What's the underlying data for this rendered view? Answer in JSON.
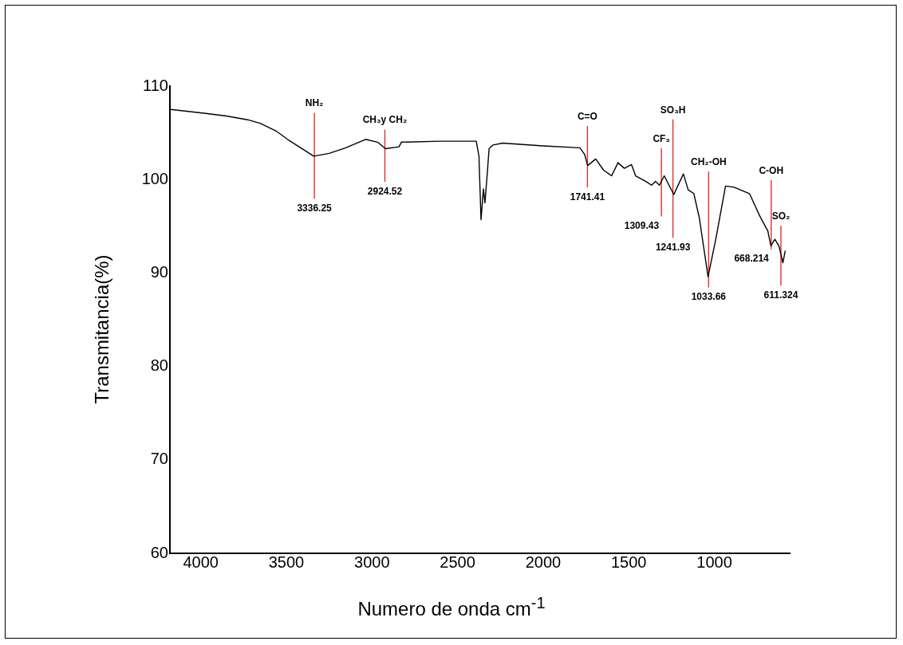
{
  "chart_data": {
    "type": "line",
    "xlabel": "Numero de onda cm$^{-1}$",
    "ylabel": "Transmitancia(%)",
    "xlim": [
      4180,
      560
    ],
    "xticks": [
      4000,
      3500,
      3000,
      2500,
      2000,
      1500,
      1000
    ],
    "ylim": [
      60,
      110
    ],
    "yticks": [
      60,
      70,
      80,
      90,
      100,
      110
    ],
    "grid": false,
    "legend": false,
    "series": [
      {
        "color": "#000000",
        "x": [
          4177,
          3980,
          3850,
          3726,
          3650,
          3560,
          3493,
          3400,
          3340,
          3250,
          3153,
          3037,
          2967,
          2921,
          2842,
          2828,
          2600,
          2391,
          2375,
          2363,
          2349,
          2340,
          2325,
          2316,
          2293,
          2237,
          2000,
          1786,
          1758,
          1740,
          1693,
          1647,
          1600,
          1563,
          1526,
          1484,
          1460,
          1400,
          1367,
          1344,
          1321,
          1293,
          1237,
          1181,
          1153,
          1120,
          1088,
          1037,
          991,
          935,
          888,
          795,
          735,
          688,
          670,
          647,
          623,
          600,
          586
        ],
        "values": [
          107.5,
          107.1,
          106.8,
          106.4,
          106.0,
          105.2,
          104.3,
          103.2,
          102.5,
          102.8,
          103.4,
          104.3,
          104.0,
          103.3,
          103.5,
          104.0,
          104.1,
          104.1,
          102.5,
          95.7,
          99.0,
          97.5,
          101.0,
          103.3,
          103.7,
          103.9,
          103.6,
          103.4,
          102.7,
          101.5,
          102.2,
          101.0,
          100.4,
          101.8,
          101.2,
          101.6,
          100.4,
          99.8,
          99.4,
          99.8,
          99.4,
          100.4,
          98.4,
          100.6,
          98.9,
          98.5,
          95.9,
          89.6,
          93.7,
          99.3,
          99.2,
          98.5,
          96.1,
          94.5,
          92.9,
          93.6,
          92.9,
          91.1,
          92.4
        ]
      },
      {
        "color": "#e03030",
        "x": [
          3336.25,
          3336.25
        ],
        "values": [
          107.1,
          98.0
        ]
      },
      {
        "color": "#e03030",
        "x": [
          2924.52,
          2924.52
        ],
        "values": [
          105.3,
          99.8
        ]
      },
      {
        "color": "#e03030",
        "x": [
          1741.41,
          1741.41
        ],
        "values": [
          105.7,
          99.2
        ]
      },
      {
        "color": "#e03030",
        "x": [
          1309.43,
          1309.43
        ],
        "values": [
          103.3,
          96.1
        ]
      },
      {
        "color": "#e03030",
        "x": [
          1241.93,
          1241.93
        ],
        "values": [
          106.4,
          93.8
        ]
      },
      {
        "color": "#e03030",
        "x": [
          1033.66,
          1033.66
        ],
        "values": [
          100.8,
          88.5
        ]
      },
      {
        "color": "#e03030",
        "x": [
          668.214,
          668.214
        ],
        "values": [
          99.9,
          92.6
        ]
      },
      {
        "color": "#e03030",
        "x": [
          611.324,
          611.324
        ],
        "values": [
          95.0,
          88.7
        ]
      }
    ],
    "annotations": [
      {
        "text": "NH₂",
        "x": 3336.25,
        "y": 107.1
      },
      {
        "text": "3336.25",
        "x": 3336.25,
        "y": 98.0
      },
      {
        "text": "CH₃y CH₂",
        "x": 2924.52,
        "y": 105.3
      },
      {
        "text": "2924.52",
        "x": 2924.52,
        "y": 99.8
      },
      {
        "text": "C=O",
        "x": 1741.41,
        "y": 105.7
      },
      {
        "text": "1741.41",
        "x": 1741.41,
        "y": 99.2
      },
      {
        "text": "CF₃",
        "x": 1309.43,
        "y": 103.3
      },
      {
        "text": "1309.43",
        "x": 1309.43,
        "y": 96.1
      },
      {
        "text": "SO₃H",
        "x": 1241.93,
        "y": 106.4
      },
      {
        "text": "1241.93",
        "x": 1241.93,
        "y": 93.8
      },
      {
        "text": "CH₂-OH",
        "x": 1033.66,
        "y": 100.8
      },
      {
        "text": "1033.66",
        "x": 1033.66,
        "y": 88.5
      },
      {
        "text": "C-OH",
        "x": 668.214,
        "y": 99.9
      },
      {
        "text": "668.214",
        "x": 668.214,
        "y": 92.6
      },
      {
        "text": "SO₂",
        "x": 611.324,
        "y": 95.0
      },
      {
        "text": "611.324",
        "x": 611.324,
        "y": 88.7
      }
    ]
  }
}
